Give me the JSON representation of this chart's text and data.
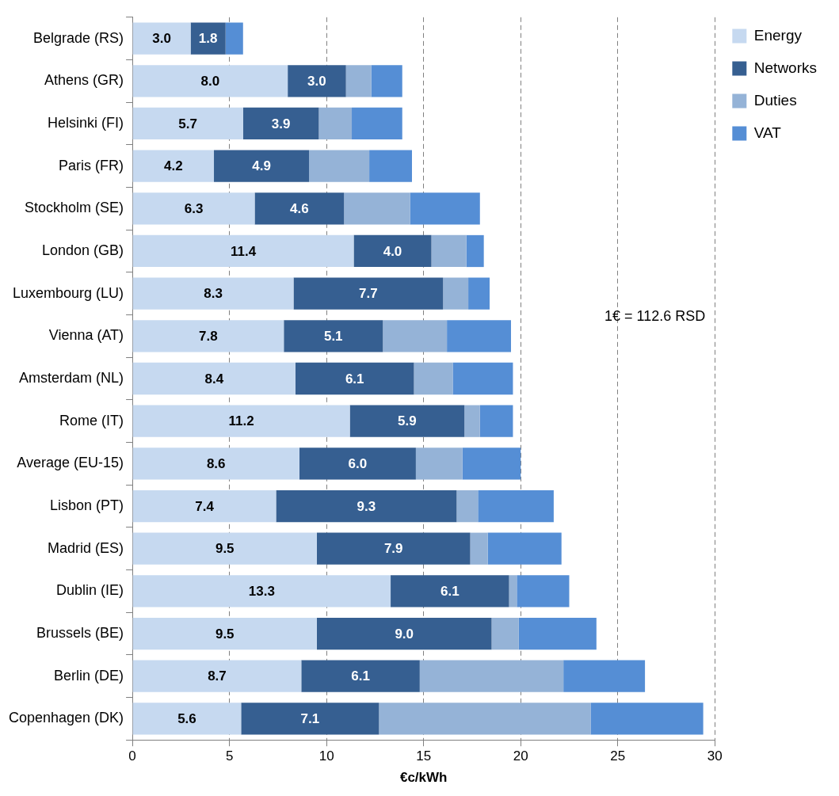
{
  "chart_data": {
    "type": "bar",
    "orientation": "horizontal",
    "stacked": true,
    "xlabel": "€c/kWh",
    "categories": [
      "Belgrade (RS)",
      "Athens (GR)",
      "Helsinki (FI)",
      "Paris (FR)",
      "Stockholm (SE)",
      "London (GB)",
      "Luxembourg (LU)",
      "Vienna (AT)",
      "Amsterdam (NL)",
      "Rome (IT)",
      "Average (EU-15)",
      "Lisbon (PT)",
      "Madrid (ES)",
      "Dublin (IE)",
      "Brussels (BE)",
      "Berlin (DE)",
      "Copenhagen (DK)"
    ],
    "series": [
      {
        "name": "Energy",
        "color": "#c6d9f0",
        "values": [
          3.0,
          8.0,
          5.7,
          4.2,
          6.3,
          11.4,
          8.3,
          7.8,
          8.4,
          11.2,
          8.6,
          7.4,
          9.5,
          13.3,
          9.5,
          8.7,
          5.6
        ],
        "value_labels": [
          "3.0",
          "8.0",
          "5.7",
          "4.2",
          "6.3",
          "11.4",
          "8.3",
          "7.8",
          "8.4",
          "11.2",
          "8.6",
          "7.4",
          "9.5",
          "13.3",
          "9.5",
          "8.7",
          "5.6"
        ]
      },
      {
        "name": "Networks",
        "color": "#365f91",
        "values": [
          1.8,
          3.0,
          3.9,
          4.9,
          4.6,
          4.0,
          7.7,
          5.1,
          6.1,
          5.9,
          6.0,
          9.3,
          7.9,
          6.1,
          9.0,
          6.1,
          7.1
        ],
        "value_labels": [
          "1.8",
          "3.0",
          "3.9",
          "4.9",
          "4.6",
          "4.0",
          "7.7",
          "5.1",
          "6.1",
          "5.9",
          "6.0",
          "9.3",
          "7.9",
          "6.1",
          "9.0",
          "6.1",
          "7.1"
        ]
      },
      {
        "name": "Duties",
        "color": "#95b3d7",
        "values": [
          0,
          1.3,
          1.7,
          3.1,
          3.4,
          1.8,
          1.3,
          3.3,
          2.0,
          0.8,
          2.4,
          1.1,
          0.9,
          0.4,
          1.4,
          7.4,
          10.9
        ]
      },
      {
        "name": "VAT",
        "color": "#558ed5",
        "values": [
          0.9,
          1.6,
          2.6,
          2.2,
          3.6,
          0.9,
          1.1,
          3.3,
          3.1,
          1.7,
          3.0,
          3.9,
          3.8,
          2.7,
          4.0,
          4.2,
          5.8
        ]
      }
    ],
    "xlim": [
      0,
      30
    ],
    "xticks": [
      0,
      5,
      10,
      15,
      20,
      25,
      30
    ],
    "grid": "x",
    "legend": "right",
    "annotations": [
      "1€ = 112.6 RSD"
    ]
  }
}
